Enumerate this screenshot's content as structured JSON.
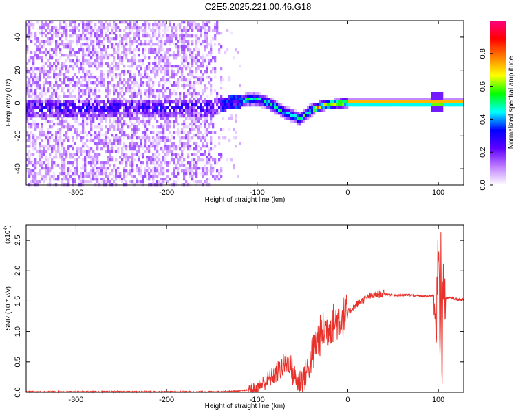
{
  "title": "C2E5.2025.221.00.46.G18",
  "chart_data": [
    {
      "type": "heatmap",
      "xlabel": "Height of straight line (km)",
      "ylabel": "Frequency (Hz)",
      "xlim": [
        -355,
        128
      ],
      "ylim": [
        -50,
        50
      ],
      "xticks": [
        -300,
        -200,
        -100,
        0,
        100
      ],
      "yticks": [
        -40,
        -20,
        0,
        20,
        40
      ],
      "colorbar": {
        "label": "Normalized spectral amplitude",
        "range": [
          0,
          1
        ],
        "ticks": [
          "0.0",
          "0.2",
          "0.4",
          "0.6",
          "0.8"
        ],
        "colors": [
          "#ffffff",
          "#c080ff",
          "#6000ff",
          "#0000ff",
          "#00ffff",
          "#00ff00",
          "#ffff00",
          "#ff8000",
          "#ff0000",
          "#ff0080"
        ]
      },
      "ridge": {
        "x": [
          -150,
          -140,
          -130,
          -120,
          -110,
          -100,
          -90,
          -80,
          -70,
          -60,
          -55,
          -50,
          -45,
          -40,
          -30,
          -20,
          -10,
          0,
          20,
          50,
          80,
          100,
          128
        ],
        "y": [
          -2,
          0,
          1,
          2,
          3,
          3,
          1,
          -2,
          -5,
          -7,
          -9,
          -7,
          -5,
          -3,
          -1,
          0,
          0.5,
          1,
          1,
          1,
          1,
          1,
          1
        ]
      }
    },
    {
      "type": "line",
      "xlabel": "Height of straight line (km)",
      "ylabel": "SNR (10 * v/v)",
      "y_multiplier": "(x10",
      "y_multiplier_exp": "4",
      "xlim": [
        -355,
        128
      ],
      "ylim": [
        0,
        2.75
      ],
      "xticks": [
        -300,
        -200,
        -100,
        0,
        100
      ],
      "yticks": [
        "0.0",
        "0.5",
        "1.0",
        "1.5",
        "2.0",
        "2.5"
      ],
      "series": [
        {
          "color": "#e8312a",
          "x": [
            -355,
            -300,
            -250,
            -200,
            -150,
            -120,
            -110,
            -100,
            -90,
            -80,
            -70,
            -65,
            -60,
            -55,
            -50,
            -45,
            -40,
            -35,
            -30,
            -25,
            -20,
            -15,
            -10,
            -5,
            0,
            5,
            10,
            20,
            30,
            40,
            50,
            60,
            70,
            80,
            90,
            95,
            98,
            100,
            102,
            103,
            104,
            105,
            108,
            110,
            115,
            120,
            128
          ],
          "y": [
            0.01,
            0.01,
            0.01,
            0.01,
            0.01,
            0.02,
            0.04,
            0.08,
            0.18,
            0.3,
            0.45,
            0.52,
            0.28,
            0.18,
            0.2,
            0.35,
            0.55,
            0.8,
            0.95,
            1.05,
            1.1,
            1.15,
            1.2,
            1.25,
            1.3,
            1.38,
            1.45,
            1.55,
            1.6,
            1.62,
            1.6,
            1.6,
            1.6,
            1.58,
            1.58,
            1.6,
            1.2,
            2.5,
            0.5,
            2.65,
            0.3,
            1.7,
            1.55,
            1.55,
            1.55,
            1.53,
            1.52
          ],
          "noise": 0.06
        }
      ]
    }
  ]
}
